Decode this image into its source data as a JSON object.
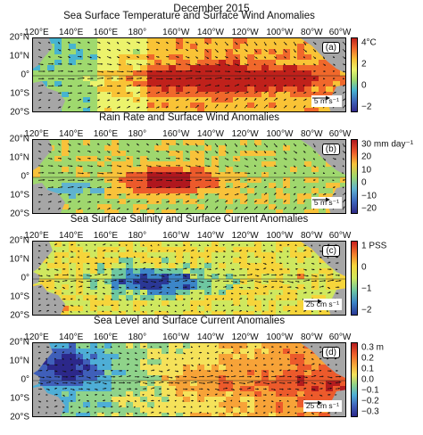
{
  "figure": {
    "title": "December 2015",
    "lon_ticks": [
      "120°E",
      "140°E",
      "160°E",
      "180°",
      "160°W",
      "140°W",
      "120°W",
      "100°W",
      "80°W",
      "60°W"
    ],
    "lat_ticks": [
      "20°N",
      "10°N",
      "0°",
      "10°S",
      "20°S"
    ],
    "colors": {
      "land": "#a6a6a6",
      "arrow": "#111111"
    }
  },
  "panels": [
    {
      "title": "Sea Surface Temperature and Surface Wind Anomalies",
      "tag": "(a)",
      "ref_vector": "5 m s⁻¹",
      "colorbar_ticks": [
        "4°C",
        "2",
        "0",
        "−2"
      ],
      "colormap": [
        "#c0211b",
        "#f0682b",
        "#f9c336",
        "#ecf36c",
        "#9fd96e",
        "#47b4d0",
        "#3e65b9",
        "#332b8c"
      ]
    },
    {
      "title": "Rain Rate and Surface Wind Anomalies",
      "tag": "(b)",
      "ref_vector": "5 m s⁻¹",
      "colorbar_ticks": [
        "30 mm day⁻¹",
        "20",
        "10",
        "0",
        "−10",
        "−20"
      ],
      "colormap": [
        "#b0171e",
        "#ec5a2b",
        "#f8c23a",
        "#9fd76e",
        "#5fb3d0",
        "#3e6bc0",
        "#2f2a87"
      ]
    },
    {
      "title": "Sea Surface Salinity and Surface Current Anomalies",
      "tag": "(c)",
      "ref_vector": "25 cm s⁻¹",
      "colorbar_ticks": [
        "1 PSS",
        "0",
        "−1",
        "−2"
      ],
      "colormap": [
        "#c81d1c",
        "#f47c2a",
        "#f6d53b",
        "#cfe85f",
        "#6ec7a1",
        "#3c86c8",
        "#2b3896"
      ]
    },
    {
      "title": "Sea Level and Surface Current Anomalies",
      "tag": "(d)",
      "ref_vector": "25 cm s⁻¹",
      "colorbar_ticks": [
        "0.3 m",
        "0.2",
        "0.1",
        "0.0",
        "−0.1",
        "−0.2",
        "−0.3"
      ],
      "colormap": [
        "#b41c1e",
        "#ec5a2b",
        "#f7a338",
        "#f5e25a",
        "#8fd38a",
        "#4eaed6",
        "#3f5fb9",
        "#2c288a"
      ]
    }
  ]
}
